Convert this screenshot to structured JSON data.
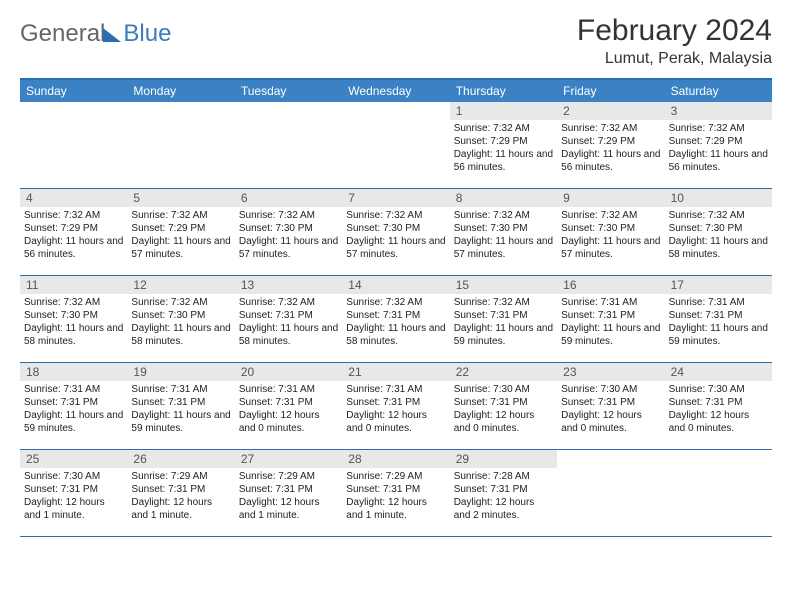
{
  "logo": {
    "text1": "General",
    "text2": "Blue"
  },
  "title": "February 2024",
  "location": "Lumut, Perak, Malaysia",
  "colors": {
    "header_bar": "#3b82c4",
    "border": "#2a6db0",
    "daynum_bg": "#e8e8e8",
    "text": "#222222",
    "logo_gray": "#666666",
    "logo_blue": "#3b7bbf"
  },
  "weekdays": [
    "Sunday",
    "Monday",
    "Tuesday",
    "Wednesday",
    "Thursday",
    "Friday",
    "Saturday"
  ],
  "weeks": [
    [
      {
        "num": "",
        "sunrise": "",
        "sunset": "",
        "daylight": ""
      },
      {
        "num": "",
        "sunrise": "",
        "sunset": "",
        "daylight": ""
      },
      {
        "num": "",
        "sunrise": "",
        "sunset": "",
        "daylight": ""
      },
      {
        "num": "",
        "sunrise": "",
        "sunset": "",
        "daylight": ""
      },
      {
        "num": "1",
        "sunrise": "Sunrise: 7:32 AM",
        "sunset": "Sunset: 7:29 PM",
        "daylight": "Daylight: 11 hours and 56 minutes."
      },
      {
        "num": "2",
        "sunrise": "Sunrise: 7:32 AM",
        "sunset": "Sunset: 7:29 PM",
        "daylight": "Daylight: 11 hours and 56 minutes."
      },
      {
        "num": "3",
        "sunrise": "Sunrise: 7:32 AM",
        "sunset": "Sunset: 7:29 PM",
        "daylight": "Daylight: 11 hours and 56 minutes."
      }
    ],
    [
      {
        "num": "4",
        "sunrise": "Sunrise: 7:32 AM",
        "sunset": "Sunset: 7:29 PM",
        "daylight": "Daylight: 11 hours and 56 minutes."
      },
      {
        "num": "5",
        "sunrise": "Sunrise: 7:32 AM",
        "sunset": "Sunset: 7:29 PM",
        "daylight": "Daylight: 11 hours and 57 minutes."
      },
      {
        "num": "6",
        "sunrise": "Sunrise: 7:32 AM",
        "sunset": "Sunset: 7:30 PM",
        "daylight": "Daylight: 11 hours and 57 minutes."
      },
      {
        "num": "7",
        "sunrise": "Sunrise: 7:32 AM",
        "sunset": "Sunset: 7:30 PM",
        "daylight": "Daylight: 11 hours and 57 minutes."
      },
      {
        "num": "8",
        "sunrise": "Sunrise: 7:32 AM",
        "sunset": "Sunset: 7:30 PM",
        "daylight": "Daylight: 11 hours and 57 minutes."
      },
      {
        "num": "9",
        "sunrise": "Sunrise: 7:32 AM",
        "sunset": "Sunset: 7:30 PM",
        "daylight": "Daylight: 11 hours and 57 minutes."
      },
      {
        "num": "10",
        "sunrise": "Sunrise: 7:32 AM",
        "sunset": "Sunset: 7:30 PM",
        "daylight": "Daylight: 11 hours and 58 minutes."
      }
    ],
    [
      {
        "num": "11",
        "sunrise": "Sunrise: 7:32 AM",
        "sunset": "Sunset: 7:30 PM",
        "daylight": "Daylight: 11 hours and 58 minutes."
      },
      {
        "num": "12",
        "sunrise": "Sunrise: 7:32 AM",
        "sunset": "Sunset: 7:30 PM",
        "daylight": "Daylight: 11 hours and 58 minutes."
      },
      {
        "num": "13",
        "sunrise": "Sunrise: 7:32 AM",
        "sunset": "Sunset: 7:31 PM",
        "daylight": "Daylight: 11 hours and 58 minutes."
      },
      {
        "num": "14",
        "sunrise": "Sunrise: 7:32 AM",
        "sunset": "Sunset: 7:31 PM",
        "daylight": "Daylight: 11 hours and 58 minutes."
      },
      {
        "num": "15",
        "sunrise": "Sunrise: 7:32 AM",
        "sunset": "Sunset: 7:31 PM",
        "daylight": "Daylight: 11 hours and 59 minutes."
      },
      {
        "num": "16",
        "sunrise": "Sunrise: 7:31 AM",
        "sunset": "Sunset: 7:31 PM",
        "daylight": "Daylight: 11 hours and 59 minutes."
      },
      {
        "num": "17",
        "sunrise": "Sunrise: 7:31 AM",
        "sunset": "Sunset: 7:31 PM",
        "daylight": "Daylight: 11 hours and 59 minutes."
      }
    ],
    [
      {
        "num": "18",
        "sunrise": "Sunrise: 7:31 AM",
        "sunset": "Sunset: 7:31 PM",
        "daylight": "Daylight: 11 hours and 59 minutes."
      },
      {
        "num": "19",
        "sunrise": "Sunrise: 7:31 AM",
        "sunset": "Sunset: 7:31 PM",
        "daylight": "Daylight: 11 hours and 59 minutes."
      },
      {
        "num": "20",
        "sunrise": "Sunrise: 7:31 AM",
        "sunset": "Sunset: 7:31 PM",
        "daylight": "Daylight: 12 hours and 0 minutes."
      },
      {
        "num": "21",
        "sunrise": "Sunrise: 7:31 AM",
        "sunset": "Sunset: 7:31 PM",
        "daylight": "Daylight: 12 hours and 0 minutes."
      },
      {
        "num": "22",
        "sunrise": "Sunrise: 7:30 AM",
        "sunset": "Sunset: 7:31 PM",
        "daylight": "Daylight: 12 hours and 0 minutes."
      },
      {
        "num": "23",
        "sunrise": "Sunrise: 7:30 AM",
        "sunset": "Sunset: 7:31 PM",
        "daylight": "Daylight: 12 hours and 0 minutes."
      },
      {
        "num": "24",
        "sunrise": "Sunrise: 7:30 AM",
        "sunset": "Sunset: 7:31 PM",
        "daylight": "Daylight: 12 hours and 0 minutes."
      }
    ],
    [
      {
        "num": "25",
        "sunrise": "Sunrise: 7:30 AM",
        "sunset": "Sunset: 7:31 PM",
        "daylight": "Daylight: 12 hours and 1 minute."
      },
      {
        "num": "26",
        "sunrise": "Sunrise: 7:29 AM",
        "sunset": "Sunset: 7:31 PM",
        "daylight": "Daylight: 12 hours and 1 minute."
      },
      {
        "num": "27",
        "sunrise": "Sunrise: 7:29 AM",
        "sunset": "Sunset: 7:31 PM",
        "daylight": "Daylight: 12 hours and 1 minute."
      },
      {
        "num": "28",
        "sunrise": "Sunrise: 7:29 AM",
        "sunset": "Sunset: 7:31 PM",
        "daylight": "Daylight: 12 hours and 1 minute."
      },
      {
        "num": "29",
        "sunrise": "Sunrise: 7:28 AM",
        "sunset": "Sunset: 7:31 PM",
        "daylight": "Daylight: 12 hours and 2 minutes."
      },
      {
        "num": "",
        "sunrise": "",
        "sunset": "",
        "daylight": ""
      },
      {
        "num": "",
        "sunrise": "",
        "sunset": "",
        "daylight": ""
      }
    ]
  ]
}
